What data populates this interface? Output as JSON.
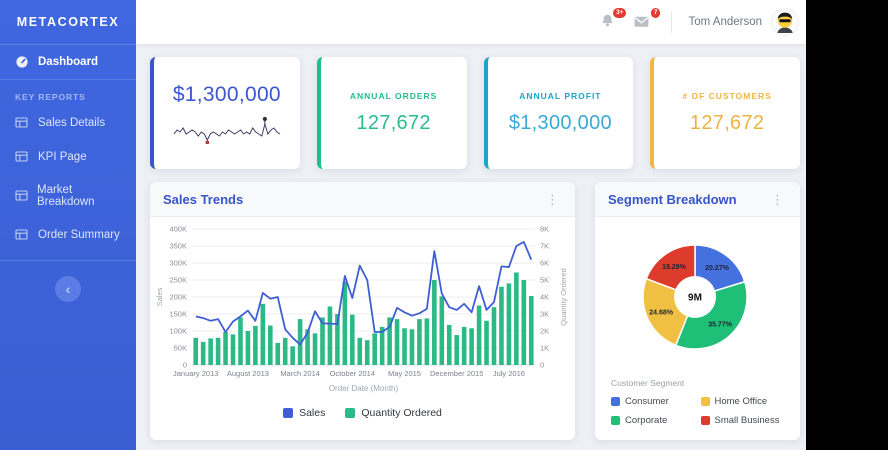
{
  "app": {
    "logo": "METACORTEX"
  },
  "icons": {
    "kebab_glyph": "⋮",
    "collapse_glyph": "‹"
  },
  "sidebar": {
    "dashboard": {
      "label": "Dashboard"
    },
    "section_label": "KEY REPORTS",
    "reports": [
      {
        "label": "Sales Details"
      },
      {
        "label": "KPI Page"
      },
      {
        "label": "Market Breakdown"
      },
      {
        "label": "Order Summary"
      }
    ]
  },
  "topbar": {
    "bell_badge": "3+",
    "mail_badge": "7",
    "user_name": "Tom Anderson"
  },
  "kpi_cards": [
    {
      "label": "",
      "value": "$1,300,000",
      "accent": "#3a55cc",
      "text_color": "#3c56cd",
      "sparkline": [
        5,
        7,
        6,
        8,
        5,
        6,
        7,
        6,
        4,
        6,
        5,
        2,
        5,
        6,
        5,
        4,
        6,
        5,
        7,
        6,
        5,
        6,
        7,
        5,
        6,
        5,
        8,
        6,
        5,
        4,
        10,
        5,
        7,
        8,
        6,
        5
      ],
      "spark_color": "#3f3d63",
      "spark_min_color": "#b23b2e",
      "spark_max_color": "#333333"
    },
    {
      "label": "ANNUAL ORDERS",
      "value": "127,672",
      "accent": "#23bd8b",
      "text_color": "#28bd8c"
    },
    {
      "label": "ANNUAL PROFIT",
      "value": "$1,300,000",
      "accent": "#1ba7c9",
      "text_color": "#3aa9d8"
    },
    {
      "label": "# OF CUSTOMERS",
      "value": "127,672",
      "accent": "#efb73f",
      "text_color": "#ecb242"
    }
  ],
  "chart_data": [
    {
      "type": "combo",
      "title": "Sales Trends",
      "xlabel": "Order Date (Month)",
      "x_tick_labels": [
        "January 2013",
        "August 2013",
        "March 2014",
        "October 2014",
        "May 2015",
        "December 2015",
        "July 2016"
      ],
      "x_tick_indices": [
        0,
        7,
        14,
        21,
        28,
        35,
        42
      ],
      "left_axis": {
        "label": "Sales",
        "max": 400000,
        "ticks": [
          "0",
          "50K",
          "100K",
          "150K",
          "200K",
          "250K",
          "300K",
          "350K",
          "400K"
        ]
      },
      "right_axis": {
        "label": "Quantity Ordered",
        "max": 8000,
        "ticks": [
          "0",
          "1K",
          "2K",
          "3K",
          "4K",
          "5K",
          "6K",
          "7K",
          "8K"
        ]
      },
      "grid": true,
      "legend_position": "bottom",
      "series": [
        {
          "name": "Sales",
          "type": "line",
          "axis": "left",
          "color": "#3f5ed6",
          "values": [
            143000,
            138000,
            130000,
            135000,
            97000,
            128000,
            143000,
            160000,
            130000,
            212000,
            195000,
            200000,
            105000,
            80000,
            60000,
            95000,
            158000,
            122000,
            122000,
            120000,
            262000,
            197000,
            292000,
            250000,
            97000,
            97000,
            112000,
            168000,
            155000,
            145000,
            152000,
            165000,
            335000,
            210000,
            170000,
            162000,
            180000,
            155000,
            232000,
            162000,
            185000,
            290000,
            288000,
            350000,
            362000,
            310000
          ]
        },
        {
          "name": "Quantity Ordered",
          "type": "bar",
          "axis": "right",
          "color": "#2cb987",
          "values": [
            1600,
            1360,
            1560,
            1600,
            1940,
            1800,
            2800,
            2000,
            2300,
            3600,
            2320,
            1300,
            1600,
            1100,
            2700,
            2100,
            1860,
            2800,
            3440,
            3000,
            4900,
            2960,
            1600,
            1460,
            1860,
            2240,
            2800,
            2700,
            2160,
            2100,
            2700,
            2740,
            5000,
            4040,
            2360,
            1760,
            2240,
            2160,
            3500,
            2600,
            3400,
            4600,
            4800,
            5440,
            5000,
            4060
          ]
        }
      ]
    },
    {
      "type": "pie",
      "title": "Segment Breakdown",
      "center_label": "9M",
      "legend_title": "Customer Segment",
      "legend_position": "bottom",
      "segments": [
        {
          "label": "Consumer",
          "pct": 20.27,
          "pct_label": "20.27%",
          "color": "#4471dd"
        },
        {
          "label": "Corporate",
          "pct": 35.77,
          "pct_label": "35.77%",
          "color": "#1fbf77"
        },
        {
          "label": "Home Office",
          "pct": 24.68,
          "pct_label": "24.68%",
          "color": "#f0c043"
        },
        {
          "label": "Small Business",
          "pct": 19.29,
          "pct_label": "19.29%",
          "color": "#dd3c2c"
        }
      ],
      "legend_order": [
        0,
        2,
        1,
        3
      ]
    }
  ]
}
